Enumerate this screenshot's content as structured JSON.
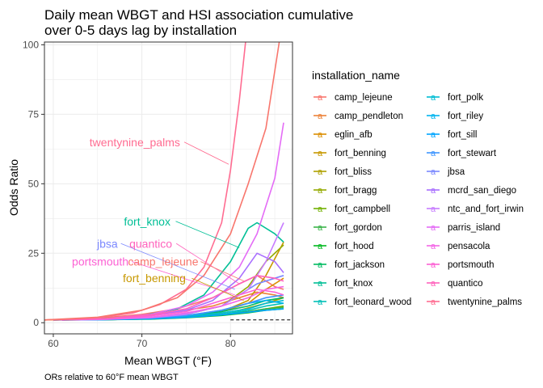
{
  "chart_data": {
    "type": "line",
    "title": "Daily mean WBGT and HSI association cumulative\nover 0-5 days lag by installation",
    "xlabel": "Mean WBGT (°F)",
    "ylabel": "Odds Ratio",
    "caption": "ORs relative to 60°F mean WBGT",
    "xlim": [
      59,
      87
    ],
    "ylim": [
      -4,
      101
    ],
    "x_ticks": [
      60,
      70,
      80
    ],
    "y_ticks": [
      0,
      25,
      50,
      75,
      100
    ],
    "grid": true,
    "reference_line": 1,
    "legend": {
      "title": "installation_name",
      "placement": "right"
    },
    "series": [
      {
        "name": "camp_lejeune",
        "color": "#F8766D",
        "points": [
          [
            59,
            1
          ],
          [
            65,
            1.6
          ],
          [
            70,
            3
          ],
          [
            74,
            5
          ],
          [
            78,
            9
          ],
          [
            81,
            14
          ],
          [
            83,
            17
          ],
          [
            85,
            13
          ],
          [
            86,
            12
          ]
        ]
      },
      {
        "name": "camp_pendleton",
        "color": "#EC8239",
        "points": [
          [
            59,
            1
          ],
          [
            65,
            1.5
          ],
          [
            70,
            2.5
          ],
          [
            74,
            4
          ],
          [
            78,
            6
          ],
          [
            81,
            9
          ],
          [
            83,
            11
          ],
          [
            85,
            10
          ],
          [
            86,
            9
          ]
        ]
      },
      {
        "name": "eglin_afb",
        "color": "#DB8E00",
        "points": [
          [
            60,
            1
          ],
          [
            66,
            1.3
          ],
          [
            71,
            1.8
          ],
          [
            75,
            2.5
          ],
          [
            79,
            4
          ],
          [
            82,
            7
          ],
          [
            84,
            12
          ],
          [
            86,
            16
          ]
        ]
      },
      {
        "name": "fort_benning",
        "color": "#C79800",
        "points": [
          [
            60,
            1
          ],
          [
            66,
            1.2
          ],
          [
            71,
            1.6
          ],
          [
            75,
            2.3
          ],
          [
            79,
            4
          ],
          [
            82,
            8
          ],
          [
            84,
            17
          ],
          [
            86,
            29
          ]
        ]
      },
      {
        "name": "fort_bliss",
        "color": "#AFA100",
        "points": [
          [
            61,
            1
          ],
          [
            66,
            1.2
          ],
          [
            70,
            1.5
          ],
          [
            74,
            2
          ],
          [
            78,
            3
          ],
          [
            81,
            4.5
          ],
          [
            84,
            7
          ],
          [
            86,
            9
          ]
        ]
      },
      {
        "name": "fort_bragg",
        "color": "#94AA00",
        "points": [
          [
            60,
            1
          ],
          [
            66,
            1.3
          ],
          [
            71,
            1.8
          ],
          [
            75,
            3
          ],
          [
            79,
            6
          ],
          [
            82,
            13
          ],
          [
            84,
            22
          ],
          [
            86,
            28
          ]
        ]
      },
      {
        "name": "fort_campbell",
        "color": "#72B000",
        "points": [
          [
            61,
            1
          ],
          [
            66,
            1.1
          ],
          [
            71,
            1.4
          ],
          [
            75,
            1.9
          ],
          [
            79,
            2.8
          ],
          [
            82,
            4
          ],
          [
            84,
            5
          ],
          [
            86,
            6
          ]
        ]
      },
      {
        "name": "fort_gordon",
        "color": "#3BB44A",
        "points": [
          [
            60,
            1
          ],
          [
            66,
            1.1
          ],
          [
            71,
            1.4
          ],
          [
            75,
            2
          ],
          [
            79,
            3
          ],
          [
            82,
            4
          ],
          [
            84,
            5
          ],
          [
            86,
            5.5
          ]
        ]
      },
      {
        "name": "fort_hood",
        "color": "#00B81F",
        "points": [
          [
            61,
            1
          ],
          [
            66,
            1.1
          ],
          [
            71,
            1.3
          ],
          [
            75,
            1.8
          ],
          [
            79,
            2.6
          ],
          [
            82,
            3.6
          ],
          [
            84,
            4.5
          ],
          [
            86,
            5
          ]
        ]
      },
      {
        "name": "fort_jackson",
        "color": "#00BB61",
        "points": [
          [
            60,
            1
          ],
          [
            66,
            1.2
          ],
          [
            71,
            1.7
          ],
          [
            75,
            2.6
          ],
          [
            79,
            4
          ],
          [
            82,
            6
          ],
          [
            84,
            8
          ],
          [
            86,
            9
          ]
        ]
      },
      {
        "name": "fort_knox",
        "color": "#00BF96",
        "points": [
          [
            61,
            1
          ],
          [
            66,
            1.5
          ],
          [
            70,
            2.5
          ],
          [
            74,
            5
          ],
          [
            77,
            10
          ],
          [
            80,
            22
          ],
          [
            82,
            34
          ],
          [
            83,
            36
          ],
          [
            85,
            32
          ],
          [
            86,
            29
          ]
        ]
      },
      {
        "name": "fort_leonard_wood",
        "color": "#00C0B8",
        "points": [
          [
            61,
            1
          ],
          [
            66,
            1.1
          ],
          [
            71,
            1.4
          ],
          [
            75,
            2
          ],
          [
            79,
            3
          ],
          [
            82,
            4.5
          ],
          [
            84,
            6
          ],
          [
            86,
            7
          ]
        ]
      },
      {
        "name": "fort_polk",
        "color": "#00BDD4",
        "points": [
          [
            60,
            1
          ],
          [
            66,
            1.2
          ],
          [
            71,
            1.6
          ],
          [
            75,
            2.4
          ],
          [
            79,
            3.5
          ],
          [
            82,
            5
          ],
          [
            84,
            7
          ],
          [
            86,
            8
          ]
        ]
      },
      {
        "name": "fort_riley",
        "color": "#00B4EF",
        "points": [
          [
            61,
            1
          ],
          [
            66,
            1.2
          ],
          [
            71,
            1.7
          ],
          [
            75,
            2.5
          ],
          [
            79,
            4.5
          ],
          [
            82,
            7
          ],
          [
            84,
            8
          ],
          [
            86,
            7
          ]
        ]
      },
      {
        "name": "fort_sill",
        "color": "#00A5FF",
        "points": [
          [
            61,
            1
          ],
          [
            66,
            1.1
          ],
          [
            71,
            1.4
          ],
          [
            75,
            1.9
          ],
          [
            79,
            2.8
          ],
          [
            82,
            3.8
          ],
          [
            84,
            4.5
          ],
          [
            86,
            5
          ]
        ]
      },
      {
        "name": "fort_stewart",
        "color": "#3F96FF",
        "points": [
          [
            60,
            1
          ],
          [
            66,
            1.2
          ],
          [
            71,
            1.7
          ],
          [
            75,
            2.6
          ],
          [
            79,
            4.5
          ],
          [
            82,
            7
          ],
          [
            84,
            9
          ],
          [
            86,
            10
          ]
        ]
      },
      {
        "name": "jbsa",
        "color": "#7B88FF",
        "points": [
          [
            61,
            1
          ],
          [
            66,
            1.3
          ],
          [
            71,
            2
          ],
          [
            75,
            3.2
          ],
          [
            79,
            6
          ],
          [
            81,
            10
          ],
          [
            83,
            14
          ],
          [
            85,
            16
          ],
          [
            86,
            17
          ]
        ]
      },
      {
        "name": "mcrd_san_diego",
        "color": "#A970FF",
        "points": [
          [
            61,
            1
          ],
          [
            66,
            1.4
          ],
          [
            71,
            2.5
          ],
          [
            75,
            4.5
          ],
          [
            78,
            8
          ],
          [
            81,
            16
          ],
          [
            83,
            25
          ],
          [
            85,
            22
          ],
          [
            86,
            18
          ]
        ]
      },
      {
        "name": "ntc_and_fort_irwin",
        "color": "#C77CFF",
        "points": [
          [
            61,
            1
          ],
          [
            66,
            1.2
          ],
          [
            71,
            1.8
          ],
          [
            75,
            3
          ],
          [
            79,
            6
          ],
          [
            82,
            12
          ],
          [
            84,
            22
          ],
          [
            86,
            36
          ]
        ]
      },
      {
        "name": "parris_island",
        "color": "#E46CF6",
        "points": [
          [
            60,
            1
          ],
          [
            66,
            1.5
          ],
          [
            71,
            3
          ],
          [
            75,
            6
          ],
          [
            78,
            11
          ],
          [
            81,
            20
          ],
          [
            83,
            32
          ],
          [
            85,
            52
          ],
          [
            86,
            72
          ]
        ]
      },
      {
        "name": "pensacola",
        "color": "#F365E6",
        "points": [
          [
            60,
            1
          ],
          [
            66,
            1.3
          ],
          [
            71,
            2
          ],
          [
            75,
            3.5
          ],
          [
            79,
            6
          ],
          [
            82,
            9
          ],
          [
            84,
            12
          ],
          [
            86,
            13
          ]
        ]
      },
      {
        "name": "portsmouth",
        "color": "#FC61D4",
        "points": [
          [
            61,
            1
          ],
          [
            66,
            1.4
          ],
          [
            71,
            2.5
          ],
          [
            75,
            4
          ],
          [
            78,
            7
          ],
          [
            81,
            10
          ],
          [
            83,
            12
          ],
          [
            85,
            11
          ],
          [
            86,
            10
          ]
        ]
      },
      {
        "name": "quantico",
        "color": "#FF62BC",
        "points": [
          [
            61,
            1
          ],
          [
            66,
            1.5
          ],
          [
            71,
            2.8
          ],
          [
            75,
            5
          ],
          [
            78,
            9
          ],
          [
            81,
            14
          ],
          [
            83,
            17
          ],
          [
            85,
            16
          ],
          [
            86,
            15
          ]
        ]
      },
      {
        "name": "twentynine_palms",
        "color": "#FF6C91",
        "points": [
          [
            60,
            1
          ],
          [
            65,
            1.8
          ],
          [
            69,
            3.5
          ],
          [
            72,
            6.5
          ],
          [
            75,
            12
          ],
          [
            77,
            20
          ],
          [
            79,
            36
          ],
          [
            80,
            55
          ],
          [
            81,
            80
          ],
          [
            81.7,
            101
          ]
        ]
      }
    ],
    "extra_lines": [
      {
        "name": "camp_lejeune-upper",
        "color": "#F8766D",
        "points": [
          [
            59,
            1
          ],
          [
            65,
            2
          ],
          [
            70,
            4.5
          ],
          [
            74,
            9
          ],
          [
            77,
            17
          ],
          [
            80,
            32
          ],
          [
            82,
            50
          ],
          [
            84,
            70
          ],
          [
            85.5,
            101
          ]
        ]
      }
    ],
    "annotations": [
      {
        "text": "twentynine_palms",
        "color": "#FF6C91",
        "at": [
          69.2,
          65
        ],
        "target": [
          79.8,
          57
        ]
      },
      {
        "text": "fort_knox",
        "color": "#00BF96",
        "at": [
          70.6,
          36.5
        ],
        "target": [
          81,
          27
        ]
      },
      {
        "text": "jbsa",
        "color": "#7B88FF",
        "at": [
          66.1,
          28.5
        ],
        "target": [
          80.5,
          12
        ]
      },
      {
        "text": "quantico",
        "color": "#FF62BC",
        "at": [
          71,
          28.5
        ],
        "target": [
          81,
          14
        ]
      },
      {
        "text": "portsmouth",
        "color": "#FC61D4",
        "at": [
          65.3,
          22
        ],
        "target": [
          80.5,
          10
        ]
      },
      {
        "text": "camp_lejeune",
        "color": "#F8766D",
        "at": [
          72.4,
          22
        ],
        "target": [
          81.5,
          15
        ]
      },
      {
        "text": "fort_benning",
        "color": "#C79800",
        "at": [
          71.4,
          16
        ],
        "target": [
          81.5,
          8
        ]
      }
    ]
  }
}
